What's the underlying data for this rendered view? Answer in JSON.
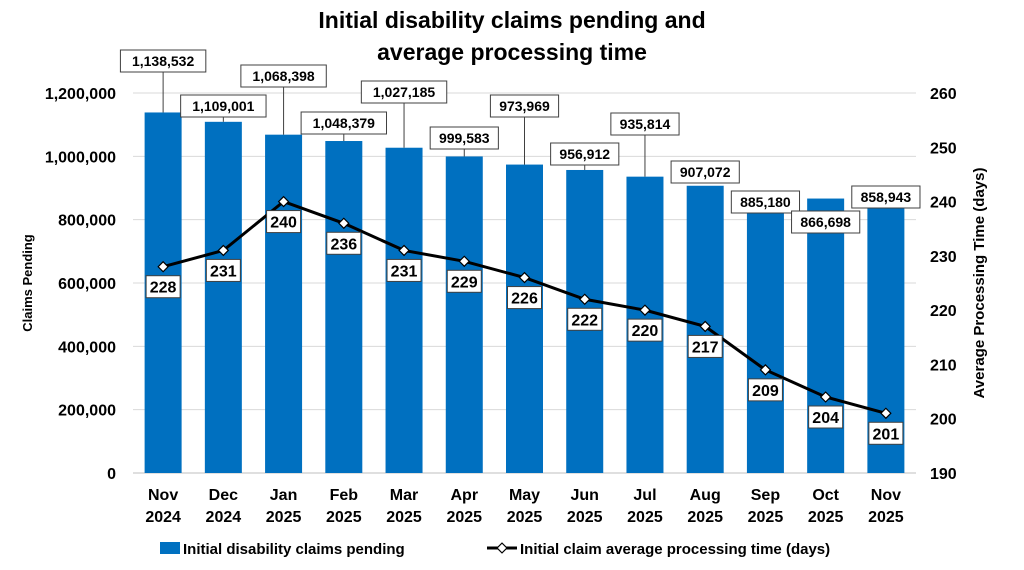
{
  "chart_data": {
    "type": "bar+line",
    "title": [
      "Initial disability claims pending and",
      "average processing time"
    ],
    "categories": [
      [
        "Nov",
        "2024"
      ],
      [
        "Dec",
        "2024"
      ],
      [
        "Jan",
        "2025"
      ],
      [
        "Feb",
        "2025"
      ],
      [
        "Mar",
        "2025"
      ],
      [
        "Apr",
        "2025"
      ],
      [
        "May",
        "2025"
      ],
      [
        "Jun",
        "2025"
      ],
      [
        "Jul",
        "2025"
      ],
      [
        "Aug",
        "2025"
      ],
      [
        "Sep",
        "2025"
      ],
      [
        "Oct",
        "2025"
      ],
      [
        "Nov",
        "2025"
      ]
    ],
    "series": [
      {
        "name": "Initial disability claims pending",
        "type": "bar",
        "axis": "left",
        "color": "#0070C0",
        "values": [
          1138532,
          1109001,
          1068398,
          1048379,
          1027185,
          999583,
          973969,
          956912,
          935814,
          907072,
          885180,
          866698,
          858943
        ],
        "labels": [
          "1,138,532",
          "1,109,001",
          "1,068,398",
          "1,048,379",
          "1,027,185",
          "999,583",
          "973,969",
          "956,912",
          "935,814",
          "907,072",
          "885,180",
          "866,698",
          "858,943"
        ]
      },
      {
        "name": "Initial claim average processing time (days)",
        "type": "line",
        "axis": "right",
        "color": "#000000",
        "values": [
          228,
          231,
          240,
          236,
          231,
          229,
          226,
          222,
          220,
          217,
          209,
          204,
          201
        ]
      }
    ],
    "ylabel_left": "Claims Pending",
    "ylabel_right": "Average Processing Time (days)",
    "ylim_left": [
      0,
      1200000
    ],
    "ylim_right": [
      190,
      260
    ],
    "yticks_left": [
      "0",
      "200,000",
      "400,000",
      "600,000",
      "800,000",
      "1,000,000",
      "1,200,000"
    ],
    "yticks_right": [
      "190",
      "200",
      "210",
      "220",
      "230",
      "240",
      "250",
      "260"
    ],
    "grid": true,
    "legend_position": "bottom"
  }
}
